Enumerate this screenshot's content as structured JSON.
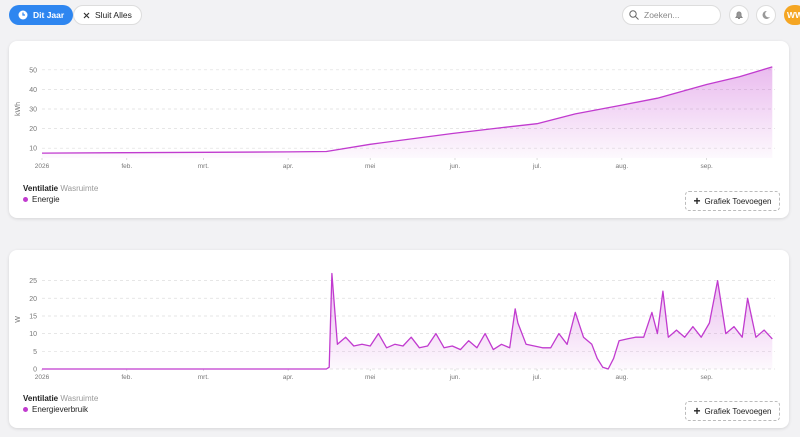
{
  "toolbar": {
    "period": "Dit Jaar",
    "close_all": "Sluit Alles",
    "search_placeholder": "Zoeken...",
    "avatar": "WW"
  },
  "chart_data": [
    {
      "type": "area",
      "y_label": "kWh",
      "device": "Ventilatie",
      "room": "Wasruimte",
      "add_button": "Grafiek Toevoegen",
      "x": [
        0,
        30,
        60,
        90,
        104,
        120,
        150,
        165,
        181,
        195,
        212,
        225,
        243,
        255,
        267
      ],
      "series": [
        {
          "name": "Energie",
          "color": "#c13bcf",
          "values": [
            7.5,
            7.7,
            7.9,
            8.1,
            8.3,
            12,
            17.5,
            20,
            22.5,
            27.5,
            32,
            35.5,
            42.5,
            46.5,
            51.5
          ]
        }
      ],
      "xlim": [
        0,
        268
      ],
      "xticks": [
        {
          "value": 0,
          "label": "2026"
        },
        {
          "value": 31,
          "label": "feb."
        },
        {
          "value": 59,
          "label": "mrt."
        },
        {
          "value": 90,
          "label": "apr."
        },
        {
          "value": 120,
          "label": "mei"
        },
        {
          "value": 151,
          "label": "jun."
        },
        {
          "value": 181,
          "label": "jul."
        },
        {
          "value": 212,
          "label": "aug."
        },
        {
          "value": 243,
          "label": "sep."
        }
      ],
      "ylim": [
        5,
        55
      ],
      "yticks": [
        10,
        20,
        30,
        40,
        50
      ],
      "grid": true
    },
    {
      "type": "area",
      "y_label": "W",
      "device": "Ventilatie",
      "room": "Wasruimte",
      "add_button": "Grafiek Toevoegen",
      "x": [
        0,
        30,
        60,
        90,
        104,
        105,
        106,
        108,
        111,
        114,
        117,
        120,
        123,
        126,
        129,
        132,
        135,
        138,
        141,
        144,
        147,
        150,
        153,
        156,
        159,
        162,
        165,
        168,
        171,
        173,
        174,
        177,
        180,
        183,
        186,
        189,
        192,
        195,
        198,
        201,
        203,
        205,
        207,
        209,
        211,
        214,
        217,
        220,
        223,
        225,
        227,
        229,
        232,
        235,
        238,
        241,
        244,
        247,
        250,
        253,
        256,
        258,
        261,
        264,
        267
      ],
      "series": [
        {
          "name": "Energieverbruik",
          "color": "#c13bcf",
          "values": [
            0,
            0,
            0,
            0,
            0,
            0.5,
            27,
            7,
            9,
            6.5,
            7,
            6.5,
            10,
            6,
            7,
            6.5,
            9,
            6,
            6.5,
            10,
            6,
            6.5,
            5.5,
            8,
            6,
            10,
            5.5,
            7,
            6,
            17,
            13,
            7,
            6.5,
            6,
            6,
            10,
            7,
            16,
            9,
            7,
            3,
            0.5,
            0,
            3,
            8,
            8.5,
            9,
            9,
            16,
            10,
            22,
            9,
            11,
            9,
            12,
            9,
            13,
            25,
            10,
            12,
            9,
            20,
            9,
            11,
            8.5
          ]
        }
      ],
      "xlim": [
        0,
        268
      ],
      "xticks": [
        {
          "value": 0,
          "label": "2026"
        },
        {
          "value": 31,
          "label": "feb."
        },
        {
          "value": 59,
          "label": "mrt."
        },
        {
          "value": 90,
          "label": "apr."
        },
        {
          "value": 120,
          "label": "mei"
        },
        {
          "value": 151,
          "label": "jun."
        },
        {
          "value": 181,
          "label": "jul."
        },
        {
          "value": 212,
          "label": "aug."
        },
        {
          "value": 243,
          "label": "sep."
        }
      ],
      "ylim": [
        0,
        28
      ],
      "yticks": [
        0,
        5,
        10,
        15,
        20,
        25
      ],
      "grid": true
    }
  ]
}
